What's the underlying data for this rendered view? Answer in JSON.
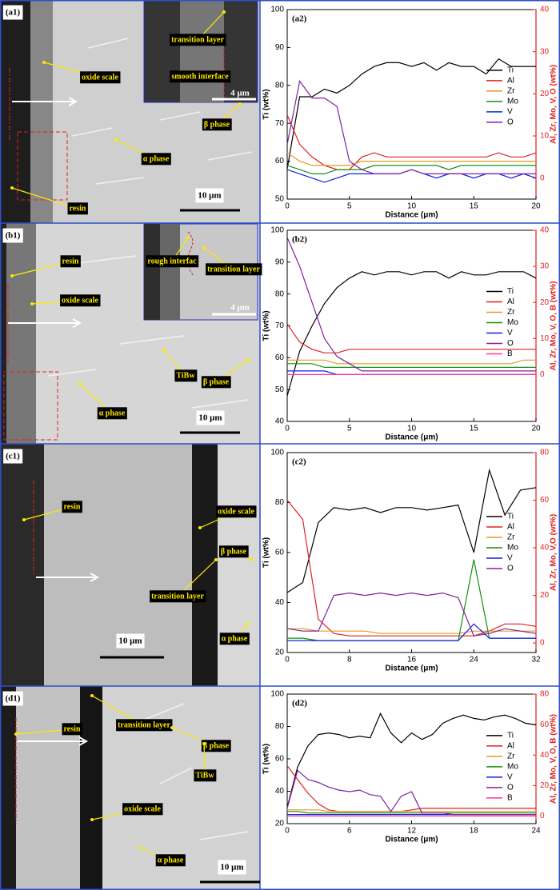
{
  "chart_data": [
    {
      "type": "line",
      "title": "(a2)",
      "x_label": "Distance (μm)",
      "y_label": "Ti (wt%)",
      "y2_label": "Al, Zr, Mo, V, O (wt%)",
      "x": [
        0,
        1,
        2,
        3,
        4,
        5,
        6,
        7,
        8,
        9,
        10,
        11,
        12,
        13,
        14,
        15,
        16,
        17,
        18,
        19,
        20
      ],
      "xlim": [
        0,
        20
      ],
      "xticks": [
        0,
        5,
        10,
        15,
        20
      ],
      "ylim": [
        50,
        100
      ],
      "yticks": [
        50,
        60,
        70,
        80,
        90,
        100
      ],
      "y2lim": [
        -5,
        40
      ],
      "y2ticks": [
        0,
        10,
        20,
        30,
        40
      ],
      "legend": "right",
      "series": [
        {
          "name": "Ti",
          "color": "#000000",
          "values": [
            58,
            77,
            77,
            79,
            78,
            80,
            83,
            85,
            86,
            86,
            85,
            86,
            84,
            86,
            85,
            85,
            83,
            87,
            85,
            85,
            85
          ]
        },
        {
          "name": "Al",
          "color": "#e02020",
          "axis": "y2",
          "values": [
            15,
            8,
            5,
            3,
            2,
            2,
            5,
            6,
            5,
            5,
            5,
            5,
            5,
            5,
            5,
            5,
            5,
            6,
            5,
            5,
            6
          ]
        },
        {
          "name": "Zr",
          "color": "#e09a20",
          "axis": "y2",
          "values": [
            6,
            4,
            3,
            3,
            3,
            3,
            4,
            4,
            4,
            4,
            4,
            4,
            4,
            4,
            4,
            4,
            4,
            4,
            4,
            4,
            4
          ]
        },
        {
          "name": "Mo",
          "color": "#109010",
          "axis": "y2",
          "values": [
            3,
            2,
            1,
            1,
            2,
            2,
            2,
            3,
            3,
            3,
            3,
            3,
            3,
            2,
            3,
            3,
            3,
            3,
            3,
            3,
            3
          ]
        },
        {
          "name": "V",
          "color": "#1020e0",
          "axis": "y2",
          "values": [
            2,
            1,
            0,
            -1,
            0,
            1,
            1,
            1,
            1,
            1,
            2,
            1,
            0,
            1,
            1,
            0,
            1,
            1,
            0,
            1,
            0
          ]
        },
        {
          "name": "O",
          "color": "#8020a0",
          "axis": "y2",
          "values": [
            8,
            23,
            19,
            19,
            17,
            4,
            2,
            1,
            1,
            1,
            2,
            1,
            1,
            1,
            1,
            1,
            1,
            1,
            1,
            1,
            1
          ]
        }
      ]
    },
    {
      "type": "line",
      "title": "(b2)",
      "x_label": "Distance (μm)",
      "y_label": "Ti (wt%)",
      "y2_label": "Al, Zr, Mo, V, O, B (wt%)",
      "x": [
        0,
        1,
        2,
        3,
        4,
        5,
        6,
        7,
        8,
        9,
        10,
        11,
        12,
        13,
        14,
        15,
        16,
        17,
        18,
        19,
        20
      ],
      "xlim": [
        0,
        20
      ],
      "xticks": [
        0,
        5,
        10,
        15,
        20
      ],
      "ylim": [
        40,
        100
      ],
      "yticks": [
        40,
        50,
        60,
        70,
        80,
        90,
        100
      ],
      "y2lim": [
        -13,
        40
      ],
      "y2ticks": [
        0,
        10,
        20,
        30,
        40
      ],
      "legend": "right",
      "series": [
        {
          "name": "Ti",
          "color": "#000000",
          "values": [
            48,
            62,
            70,
            77,
            82,
            85,
            87,
            86,
            87,
            87,
            86,
            87,
            87,
            85,
            87,
            86,
            86,
            87,
            87,
            87,
            85
          ]
        },
        {
          "name": "Al",
          "color": "#e02020",
          "axis": "y2",
          "values": [
            14,
            9,
            7,
            6,
            6,
            7,
            7,
            7,
            7,
            7,
            7,
            7,
            7,
            7,
            7,
            7,
            7,
            7,
            7,
            7,
            7
          ]
        },
        {
          "name": "Zr",
          "color": "#e09a20",
          "axis": "y2",
          "values": [
            4,
            4,
            4,
            4,
            3,
            3,
            3,
            3,
            3,
            3,
            3,
            3,
            3,
            3,
            3,
            3,
            3,
            3,
            3,
            4,
            4
          ]
        },
        {
          "name": "Mo",
          "color": "#109010",
          "axis": "y2",
          "values": [
            3,
            3,
            3,
            2,
            2,
            2,
            2,
            2,
            2,
            2,
            2,
            2,
            2,
            2,
            2,
            2,
            2,
            2,
            2,
            2,
            2
          ]
        },
        {
          "name": "V",
          "color": "#1020e0",
          "axis": "y2",
          "values": [
            1,
            1,
            1,
            1,
            0,
            0,
            0,
            0,
            0,
            0,
            0,
            0,
            0,
            0,
            0,
            0,
            0,
            0,
            0,
            0,
            0
          ]
        },
        {
          "name": "O",
          "color": "#8020a0",
          "axis": "y2",
          "values": [
            38,
            30,
            20,
            10,
            5,
            3,
            1,
            1,
            1,
            1,
            1,
            1,
            1,
            1,
            1,
            1,
            1,
            1,
            1,
            1,
            1
          ]
        },
        {
          "name": "B",
          "color": "#ff3399",
          "axis": "y2",
          "values": [
            0,
            0,
            0,
            0,
            0,
            0,
            0,
            0,
            0,
            0,
            0,
            0,
            0,
            0,
            0,
            0,
            0,
            0,
            0,
            0,
            0
          ]
        }
      ]
    },
    {
      "type": "line",
      "title": "(c2)",
      "x_label": "Distance (μm)",
      "y_label": "Ti (wt%)",
      "y2_label": "Al, Zr, Mo, V,O (wt%)",
      "x": [
        0,
        2,
        4,
        6,
        8,
        10,
        12,
        14,
        16,
        18,
        20,
        22,
        24,
        26,
        28,
        30,
        32
      ],
      "xlim": [
        0,
        32
      ],
      "xticks": [
        0,
        8,
        16,
        24,
        32
      ],
      "ylim": [
        20,
        100
      ],
      "yticks": [
        20,
        40,
        60,
        80,
        100
      ],
      "y2lim": [
        -4,
        80
      ],
      "y2ticks": [
        0,
        20,
        40,
        60,
        80
      ],
      "legend": "right",
      "series": [
        {
          "name": "Ti",
          "color": "#000000",
          "values": [
            44,
            48,
            72,
            78,
            77,
            78,
            76,
            78,
            78,
            77,
            78,
            79,
            60,
            93,
            75,
            85,
            86
          ]
        },
        {
          "name": "Al",
          "color": "#e02020",
          "axis": "y2",
          "values": [
            60,
            52,
            10,
            4,
            3,
            3,
            3,
            3,
            3,
            3,
            3,
            3,
            3,
            5,
            8,
            8,
            7
          ]
        },
        {
          "name": "Zr",
          "color": "#e09a20",
          "axis": "y2",
          "values": [
            6,
            6,
            5,
            5,
            5,
            5,
            4,
            4,
            4,
            4,
            4,
            4,
            5,
            5,
            5,
            5,
            5
          ]
        },
        {
          "name": "Mo",
          "color": "#109010",
          "axis": "y2",
          "values": [
            2,
            2,
            1,
            1,
            1,
            1,
            1,
            1,
            1,
            1,
            1,
            1,
            35,
            2,
            2,
            2,
            2
          ]
        },
        {
          "name": "V",
          "color": "#1020e0",
          "axis": "y2",
          "values": [
            1,
            1,
            1,
            1,
            1,
            1,
            1,
            1,
            1,
            1,
            1,
            1,
            8,
            2,
            2,
            2,
            2
          ]
        },
        {
          "name": "O",
          "color": "#8020a0",
          "axis": "y2",
          "values": [
            6,
            5,
            5,
            20,
            21,
            20,
            21,
            20,
            21,
            20,
            21,
            19,
            3,
            4,
            6,
            5,
            4
          ]
        }
      ]
    },
    {
      "type": "line",
      "title": "(d2)",
      "x_label": "Distance (μm)",
      "y_label": "Ti (wt%)",
      "y2_label": "Al, Zr, Mo, V, O, B (wt%)",
      "x": [
        0,
        1,
        2,
        3,
        4,
        5,
        6,
        7,
        8,
        9,
        10,
        11,
        12,
        13,
        14,
        15,
        16,
        17,
        18,
        19,
        20,
        21,
        22,
        23,
        24
      ],
      "xlim": [
        0,
        24
      ],
      "xticks": [
        0,
        6,
        12,
        18,
        24
      ],
      "ylim": [
        20,
        100
      ],
      "yticks": [
        20,
        40,
        60,
        80,
        100
      ],
      "y2lim": [
        -5,
        80
      ],
      "y2ticks": [
        0,
        20,
        40,
        60,
        80
      ],
      "legend": "right",
      "series": [
        {
          "name": "Ti",
          "color": "#000000",
          "values": [
            30,
            55,
            68,
            75,
            76,
            75,
            73,
            74,
            73,
            88,
            76,
            70,
            76,
            72,
            75,
            82,
            85,
            87,
            85,
            84,
            86,
            87,
            85,
            82,
            81
          ]
        },
        {
          "name": "Al",
          "color": "#e02020",
          "axis": "y2",
          "values": [
            33,
            24,
            15,
            8,
            4,
            3,
            3,
            3,
            3,
            3,
            3,
            3,
            4,
            5,
            5,
            5,
            5,
            5,
            5,
            5,
            5,
            5,
            5,
            5,
            5
          ]
        },
        {
          "name": "Zr",
          "color": "#e09a20",
          "axis": "y2",
          "values": [
            4,
            4,
            4,
            4,
            3,
            3,
            3,
            3,
            3,
            3,
            3,
            3,
            3,
            3,
            3,
            3,
            3,
            3,
            3,
            3,
            3,
            3,
            3,
            3,
            3
          ]
        },
        {
          "name": "Mo",
          "color": "#109010",
          "axis": "y2",
          "values": [
            3,
            3,
            2,
            2,
            2,
            2,
            2,
            2,
            2,
            2,
            2,
            2,
            2,
            2,
            2,
            2,
            2,
            2,
            2,
            2,
            2,
            2,
            2,
            2,
            2
          ]
        },
        {
          "name": "V",
          "color": "#1020e0",
          "axis": "y2",
          "values": [
            1,
            1,
            1,
            1,
            1,
            1,
            1,
            1,
            1,
            1,
            1,
            1,
            1,
            1,
            1,
            1,
            1,
            1,
            1,
            1,
            1,
            1,
            1,
            1,
            1
          ]
        },
        {
          "name": "O",
          "color": "#8020a0",
          "axis": "y2",
          "values": [
            5,
            30,
            24,
            22,
            19,
            17,
            16,
            17,
            14,
            13,
            3,
            13,
            16,
            2,
            2,
            2,
            1,
            1,
            1,
            1,
            1,
            1,
            1,
            1,
            1
          ]
        },
        {
          "name": "B",
          "color": "#ff3399",
          "axis": "y2",
          "values": [
            0,
            0,
            0,
            0,
            0,
            0,
            0,
            0,
            0,
            0,
            0,
            0,
            0,
            0,
            0,
            0,
            0,
            0,
            0,
            0,
            0,
            0,
            0,
            0,
            0
          ]
        }
      ]
    }
  ],
  "images": [
    {
      "label": "(a1)",
      "annotations": [
        "oxide scale",
        "β phase",
        "α phase",
        "resin"
      ],
      "scale_bar": "10 μm",
      "inset": {
        "annotations": [
          "transition layer",
          "smooth interface"
        ],
        "scale_bar": "4 μm"
      }
    },
    {
      "label": "(b1)",
      "annotations": [
        "resin",
        "oxide scale",
        "TiBw",
        "β phase",
        "α phase"
      ],
      "scale_bar": "10 μm",
      "inset": {
        "annotations": [
          "rough interfac",
          "transition layer"
        ],
        "scale_bar": "4 μm"
      }
    },
    {
      "label": "(c1)",
      "annotations": [
        "resin",
        "oxide scale",
        "β phase",
        "transition layer",
        "α phase"
      ],
      "scale_bar": "10 μm"
    },
    {
      "label": "(d1)",
      "annotations": [
        "resin",
        "transition layer",
        "β phase",
        "TiBw",
        "oxide scale",
        "α phase"
      ],
      "scale_bar": "10 μm"
    }
  ]
}
